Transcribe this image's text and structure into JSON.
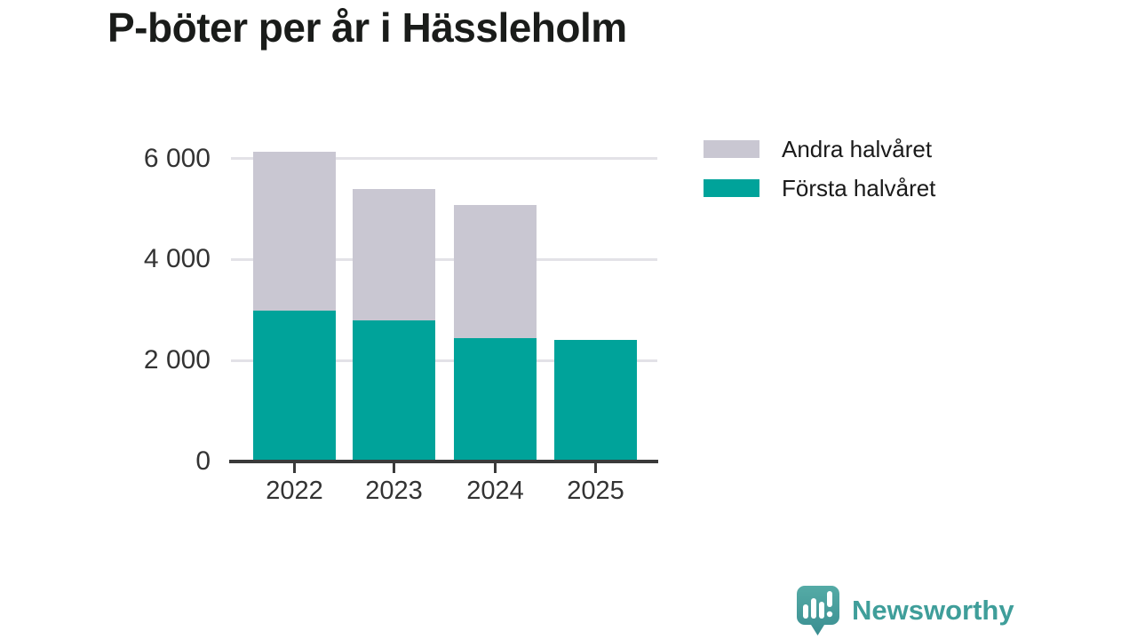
{
  "page": {
    "background": "#ffffff"
  },
  "header": {
    "title": "P-böter per år i Hässleholm",
    "title_color": "#1a1c1a"
  },
  "chart_data": {
    "type": "bar",
    "stacked": true,
    "title": "P-böter per år i Hässleholm",
    "categories": [
      "2022",
      "2023",
      "2024",
      "2025"
    ],
    "series": [
      {
        "name": "Första halvåret",
        "color": "#00a39a",
        "values": [
          2980,
          2790,
          2450,
          2410
        ]
      },
      {
        "name": "Andra halvåret",
        "color": "#c9c7d2",
        "values": [
          3150,
          2610,
          2630,
          0
        ]
      }
    ],
    "xlabel": "",
    "ylabel": "",
    "ylim": [
      0,
      6400
    ],
    "y_ticks": [
      {
        "value": 0,
        "label": "0"
      },
      {
        "value": 2000,
        "label": "2 000"
      },
      {
        "value": 4000,
        "label": "4 000"
      },
      {
        "value": 6000,
        "label": "6 000"
      }
    ],
    "grid": "horizontal-only",
    "legend_position": "top-right"
  },
  "legend": {
    "items": [
      {
        "label": "Andra halvåret",
        "color": "#c9c7d2"
      },
      {
        "label": "Första halvåret",
        "color": "#00a39a"
      }
    ]
  },
  "axes": {
    "line_color": "#3a3a3a",
    "label_color": "#333333",
    "gridline_color": "#e3e2e7"
  },
  "branding": {
    "logo_text": "Newsworthy",
    "logo_color": "#3f9e9a",
    "logo_icon": "bar-chart-speech-bubble-icon",
    "logo_icon_gradient_top": "#55aba6",
    "logo_icon_gradient_bottom": "#3a8e91"
  }
}
